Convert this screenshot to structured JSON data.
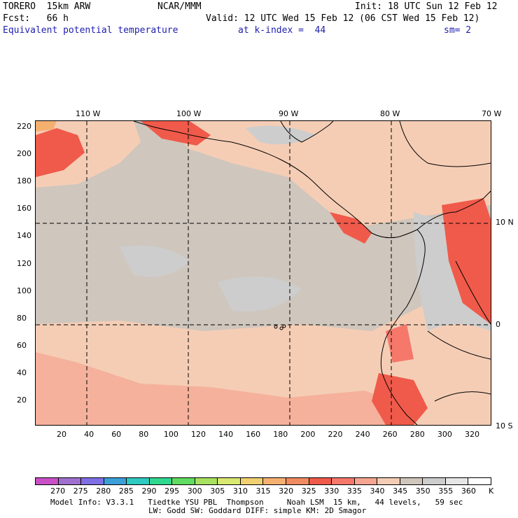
{
  "header": {
    "model": "TORERO  15km ARW",
    "org": "NCAR/MMM",
    "init": "Init: 18 UTC Sun 12 Feb 12",
    "fcst": "Fcst:   66 h",
    "valid": "Valid: 12 UTC Wed 15 Feb 12 (06 CST Wed 15 Feb 12)",
    "field": "Equivalent potential temperature",
    "level": "at k-index =  44",
    "smooth": "sm= 2"
  },
  "axes": {
    "top_lon": [
      "110 W",
      "100 W",
      "90 W",
      "80 W",
      "70 W"
    ],
    "right_lat": [
      "10 N",
      "0",
      "10 S"
    ],
    "left_ticks": [
      "220",
      "200",
      "180",
      "160",
      "140",
      "120",
      "100",
      "80",
      "60",
      "40",
      "20"
    ],
    "bottom_ticks": [
      "20",
      "40",
      "60",
      "80",
      "100",
      "120",
      "140",
      "160",
      "180",
      "200",
      "220",
      "240",
      "260",
      "280",
      "300",
      "320"
    ]
  },
  "colorbar": {
    "labels": [
      "270",
      "275",
      "280",
      "285",
      "290",
      "295",
      "300",
      "305",
      "310",
      "315",
      "320",
      "325",
      "330",
      "335",
      "340",
      "345",
      "350",
      "355",
      "360"
    ],
    "unit": "K",
    "colors": [
      "#c94fc6",
      "#a070d0",
      "#7f6fe4",
      "#3b9fd8",
      "#2ec9c0",
      "#2fd88f",
      "#60dc60",
      "#a8e060",
      "#d8e870",
      "#f0d070",
      "#f5b070",
      "#f08a60",
      "#f05a4a",
      "#f5786a",
      "#f5a590",
      "#f5cdb5",
      "#d0c6bc",
      "#cdcdcd",
      "#e6e6e6",
      "#ffffff"
    ]
  },
  "footer": {
    "line1": "Model Info: V3.3.1   Tiedtke YSU PBL  Thompson     Noah LSM  15 km,   44 levels,   59 sec",
    "line2": "LW: Godd SW: Goddard DIFF: simple KM: 2D Smagor"
  }
}
